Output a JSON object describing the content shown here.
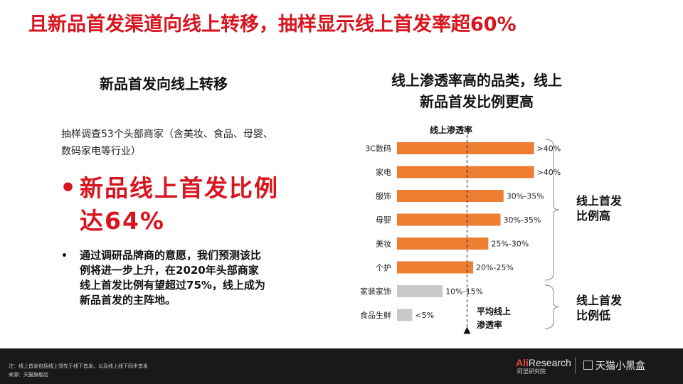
{
  "title": "且新品首发渠道向线上转移，抽样显示线上首发率超60%",
  "left": {
    "heading": "新品首发向线上转移",
    "survey": "抽样调查53个头部商家（含美妆、食品、母婴、数码家电等行业）",
    "bullet_main": "新品线上首发比例达64%",
    "bullet_detail": "通过调研品牌商的意愿，我们预测该比例将进一步上升，在2020年头部商家线上首发比例有望超过75%，线上成为新品首发的主阵地。"
  },
  "right": {
    "heading_line1": "线上渗透率高的品类，线上",
    "heading_line2": "新品首发比例更高"
  },
  "chart_data": {
    "type": "bar",
    "orientation": "horizontal",
    "title": "线上渗透率",
    "categories": [
      "3C数码",
      "家电",
      "服饰",
      "母婴",
      "美妆",
      "个护",
      "家装家饰",
      "食品生鲜"
    ],
    "values": [
      45,
      45,
      35,
      34,
      30,
      25,
      15,
      5
    ],
    "labels": [
      ">40%",
      ">40%",
      "30%-35%",
      "30%-35%",
      "25%-30%",
      "20%-25%",
      "10%-15%",
      "<5%"
    ],
    "groups": [
      {
        "label": "线上首发比例高",
        "categories": [
          "3C数码",
          "家电",
          "服饰",
          "母婴",
          "美妆",
          "个护"
        ],
        "color": "#ed7d31"
      },
      {
        "label": "线上首发比例低",
        "categories": [
          "家装家饰",
          "食品生鲜"
        ],
        "color": "#c9c9c9"
      }
    ],
    "reference": {
      "label": "平均线上渗透率",
      "value": 23
    },
    "xlim": [
      0,
      50
    ]
  },
  "footer": {
    "note": "注：线上首发包括线上领先于线下首发、以及线上线下同步首发",
    "source": "来源：天猫旗舰店",
    "logo1_ali": "Ali",
    "logo1_research": "Research",
    "logo1_sub": "阿里研究院",
    "logo2": "天猫小黑盒"
  }
}
